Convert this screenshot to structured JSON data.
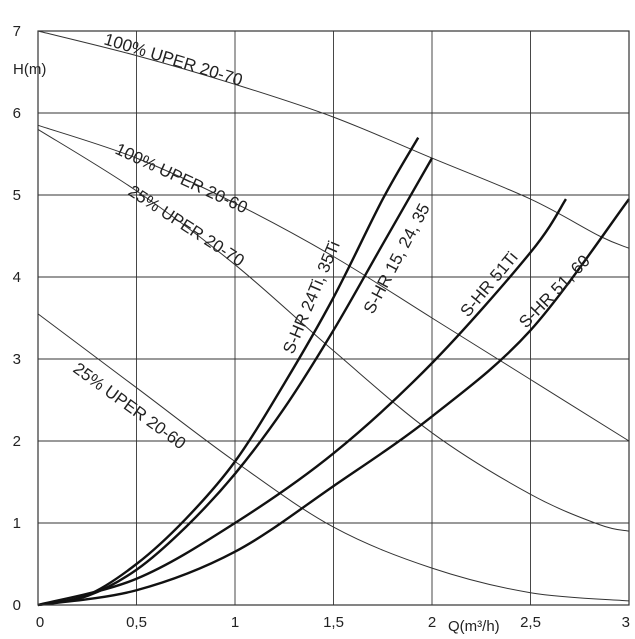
{
  "chart_data": {
    "type": "line",
    "title": "",
    "xlabel": "Q(m³/h)",
    "ylabel": "H(m)",
    "xlim": [
      0,
      3
    ],
    "ylim": [
      0,
      7
    ],
    "x_ticks": [
      "0",
      "0,5",
      "1",
      "1,5",
      "2",
      "2,5",
      "3"
    ],
    "y_ticks": [
      "0",
      "1",
      "2",
      "3",
      "4",
      "5",
      "6",
      "7"
    ],
    "grid": true,
    "colors": {
      "pump_curve": "#333333",
      "system_curve": "#111111",
      "grid": "#333333"
    },
    "pump_curves": [
      {
        "name": "100% UPER 20-70",
        "x": [
          0,
          0.5,
          1,
          1.5,
          2,
          2.5,
          2.85,
          3
        ],
        "y": [
          7.0,
          6.7,
          6.35,
          5.95,
          5.45,
          4.95,
          4.5,
          4.35
        ]
      },
      {
        "name": "100% UPER 20-60",
        "x": [
          0,
          0.5,
          1,
          1.5,
          2,
          2.5,
          3
        ],
        "y": [
          5.85,
          5.45,
          4.9,
          4.25,
          3.5,
          2.75,
          2.0
        ]
      },
      {
        "name": "25% UPER 20-70",
        "x": [
          0,
          0.5,
          1,
          1.5,
          2,
          2.5,
          2.85,
          3
        ],
        "y": [
          5.8,
          5.05,
          4.15,
          3.1,
          2.1,
          1.35,
          0.98,
          0.9
        ]
      },
      {
        "name": "25% UPER 20-60",
        "x": [
          0,
          0.5,
          1,
          1.5,
          2,
          2.5,
          3
        ],
        "y": [
          3.55,
          2.65,
          1.75,
          0.95,
          0.45,
          0.15,
          0.05
        ]
      }
    ],
    "system_curves": [
      {
        "name": "S-HR 24Ti, 35Ti",
        "x": [
          0,
          0.25,
          0.5,
          0.75,
          1,
          1.25,
          1.5,
          1.75,
          1.93
        ],
        "y": [
          0,
          0.12,
          0.5,
          1.05,
          1.75,
          2.7,
          3.75,
          4.95,
          5.7
        ]
      },
      {
        "name": "S-HR 15, 24, 35",
        "x": [
          0,
          0.25,
          0.5,
          0.75,
          1,
          1.25,
          1.5,
          1.75,
          2.0
        ],
        "y": [
          0,
          0.11,
          0.43,
          0.95,
          1.6,
          2.4,
          3.35,
          4.4,
          5.45
        ]
      },
      {
        "name": "S-HR 51Ti",
        "x": [
          0,
          0.5,
          1,
          1.5,
          2,
          2.5,
          2.68
        ],
        "y": [
          0,
          0.32,
          1.0,
          1.85,
          2.95,
          4.3,
          4.95
        ]
      },
      {
        "name": "S-HR 51, 60",
        "x": [
          0,
          0.5,
          1,
          1.5,
          2,
          2.5,
          3
        ],
        "y": [
          0,
          0.18,
          0.65,
          1.45,
          2.3,
          3.35,
          4.95
        ]
      }
    ]
  }
}
